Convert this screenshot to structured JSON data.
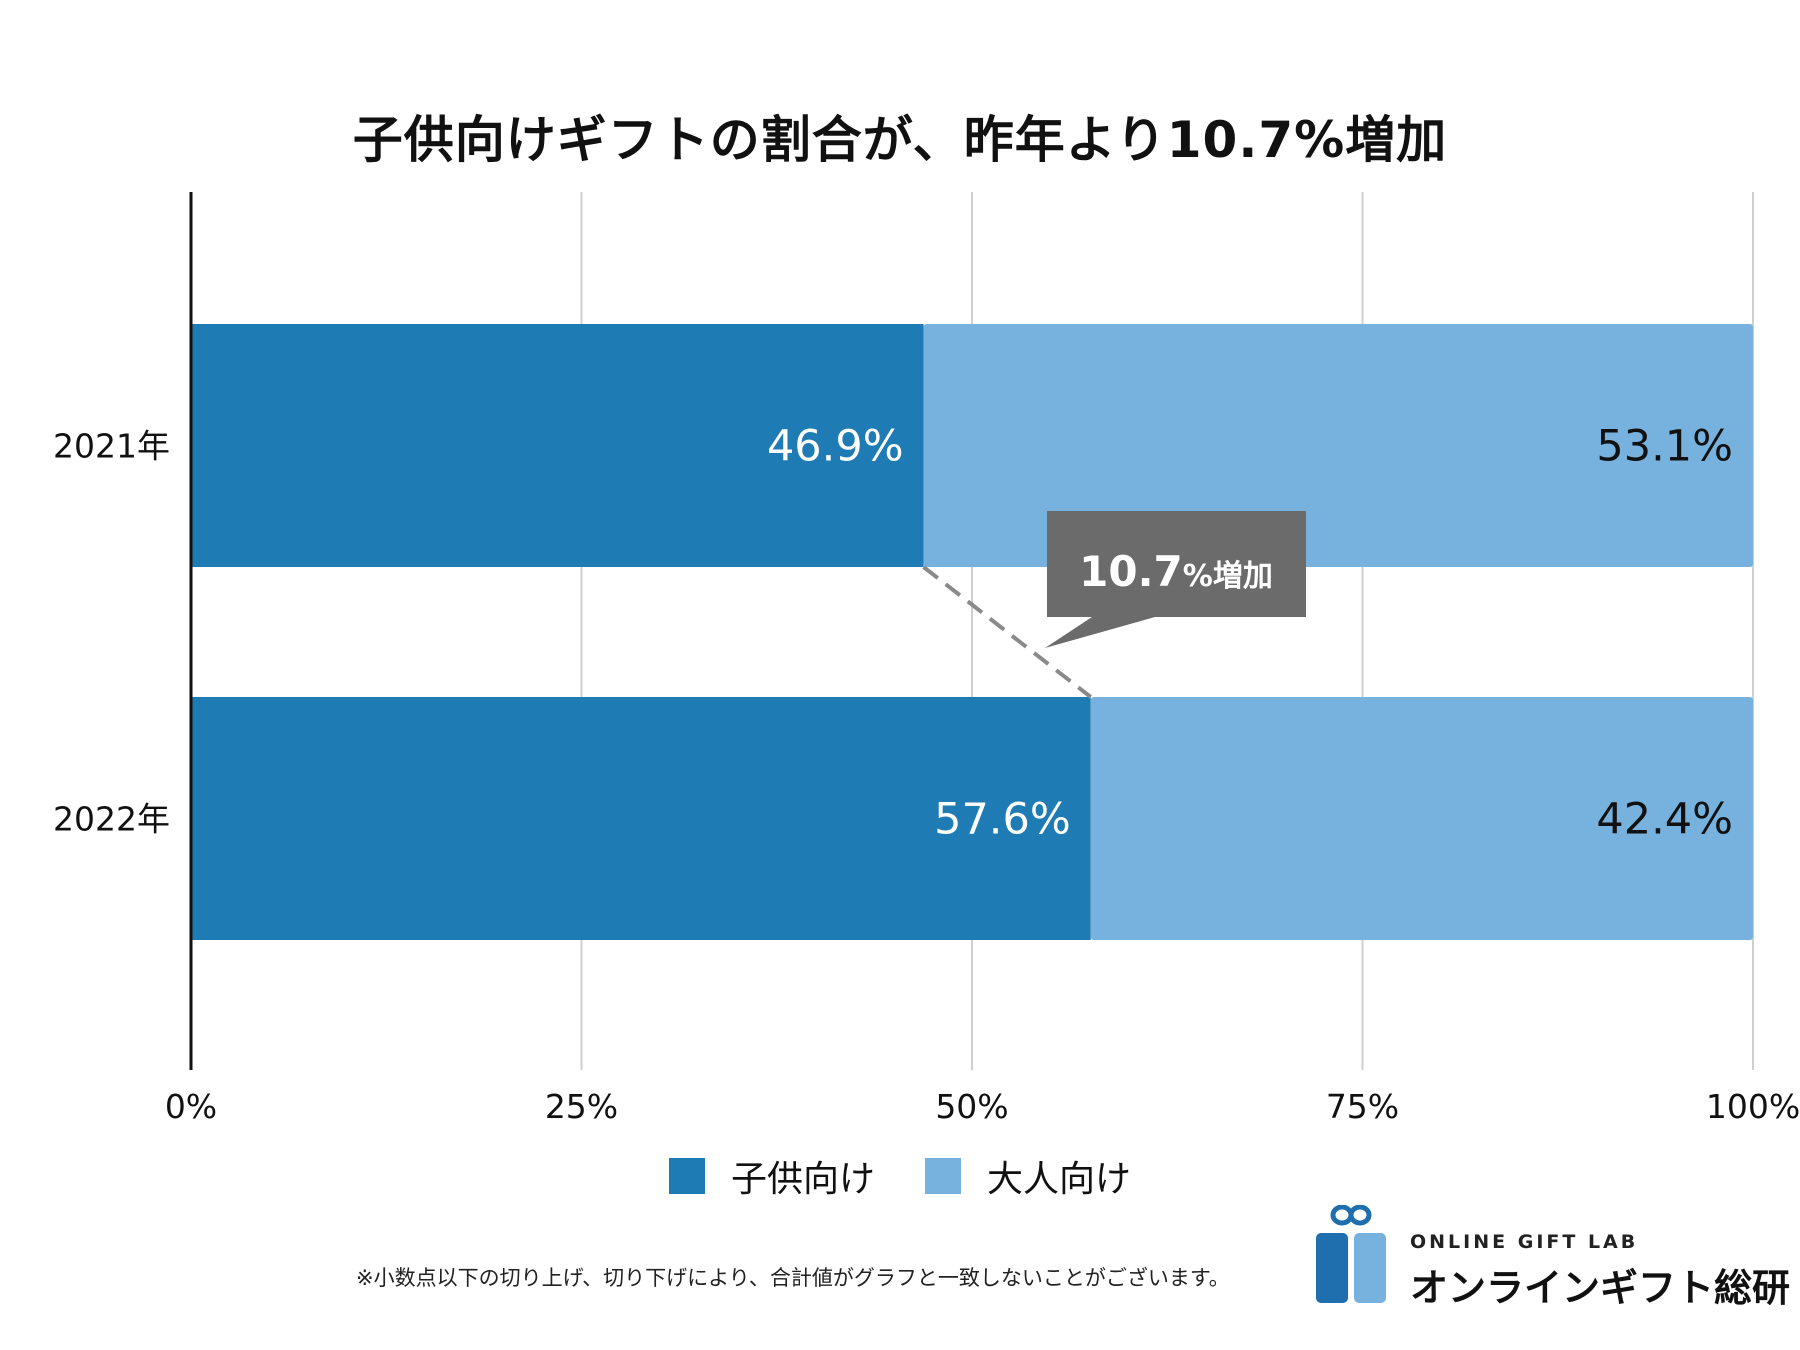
{
  "title": "子供向けギフトの割合が、昨年より10.7%増加",
  "chart_data": {
    "type": "bar",
    "orientation": "horizontal",
    "stacked": true,
    "categories": [
      "2021年",
      "2022年"
    ],
    "series": [
      {
        "name": "子供向け",
        "values": [
          46.9,
          57.6
        ],
        "labels": [
          "46.9%",
          "57.6%"
        ],
        "color": "#1f7bb4",
        "label_color": "#ffffff"
      },
      {
        "name": "大人向け",
        "values": [
          53.1,
          42.4
        ],
        "labels": [
          "53.1%",
          "42.4%"
        ],
        "color": "#76b2dd",
        "label_color": "#111111"
      }
    ],
    "xlim": [
      0,
      100
    ],
    "x_ticks": [
      "0%",
      "25%",
      "50%",
      "75%",
      "100%"
    ],
    "grid": true,
    "legend_position": "bottom",
    "annotation": {
      "text_main": "10.7",
      "text_suffix": "%増加",
      "color": "#6b6b6b"
    }
  },
  "footnote": "※小数点以下の切り上げ、切り下げにより、合計値がグラフと一致しないことがございます。",
  "brand": {
    "name_en": "ONLINE GIFT LAB",
    "name_ja": "オンラインギフト総研",
    "icon": "gift-box-icon",
    "colors": [
      "#1f6fae",
      "#76b2dd"
    ]
  }
}
